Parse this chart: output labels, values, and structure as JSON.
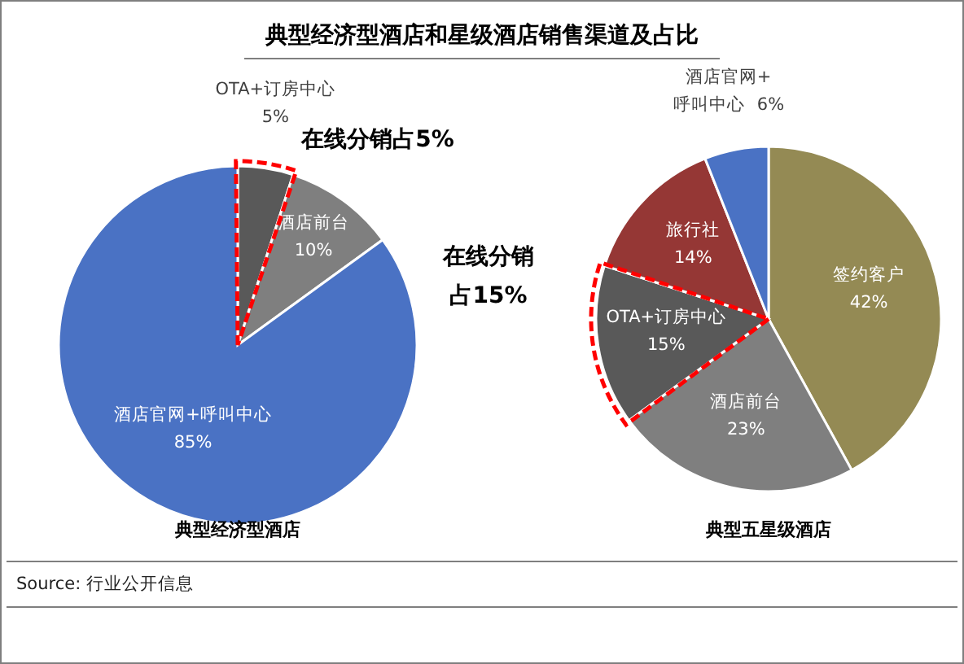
{
  "chart_data": [
    {
      "type": "pie",
      "title": "典型经济型酒店和星级酒店销售渠道及占比",
      "xlabel": "典型经济型酒店",
      "categories": [
        "OTA+订房中心",
        "酒店前台",
        "酒店官网+呼叫中心"
      ],
      "values": [
        5,
        10,
        85
      ],
      "colors": [
        "#595959",
        "#7f7f7f",
        "#4a72c4"
      ],
      "value_labels": [
        "5%",
        "10%",
        "85%"
      ],
      "annotations": [
        {
          "text": "在线分销占5%",
          "x": "OTA+订房中心"
        },
        "Source: 行业公开信息"
      ]
    },
    {
      "type": "pie",
      "xlabel": "典型五星级酒店",
      "categories": [
        "签约客户",
        "酒店前台",
        "OTA+订房中心",
        "旅行社",
        "酒店官网+呼叫中心"
      ],
      "values": [
        42,
        23,
        15,
        14,
        6
      ],
      "colors": [
        "#948a54",
        "#7f7f7f",
        "#595959",
        "#953735",
        "#4a72c4"
      ],
      "value_labels": [
        "42%",
        "23%",
        "15%",
        "14%",
        "6%"
      ],
      "annotations": [
        {
          "text": "在线分销占15%",
          "x": "OTA+订房中心"
        }
      ]
    }
  ]
}
